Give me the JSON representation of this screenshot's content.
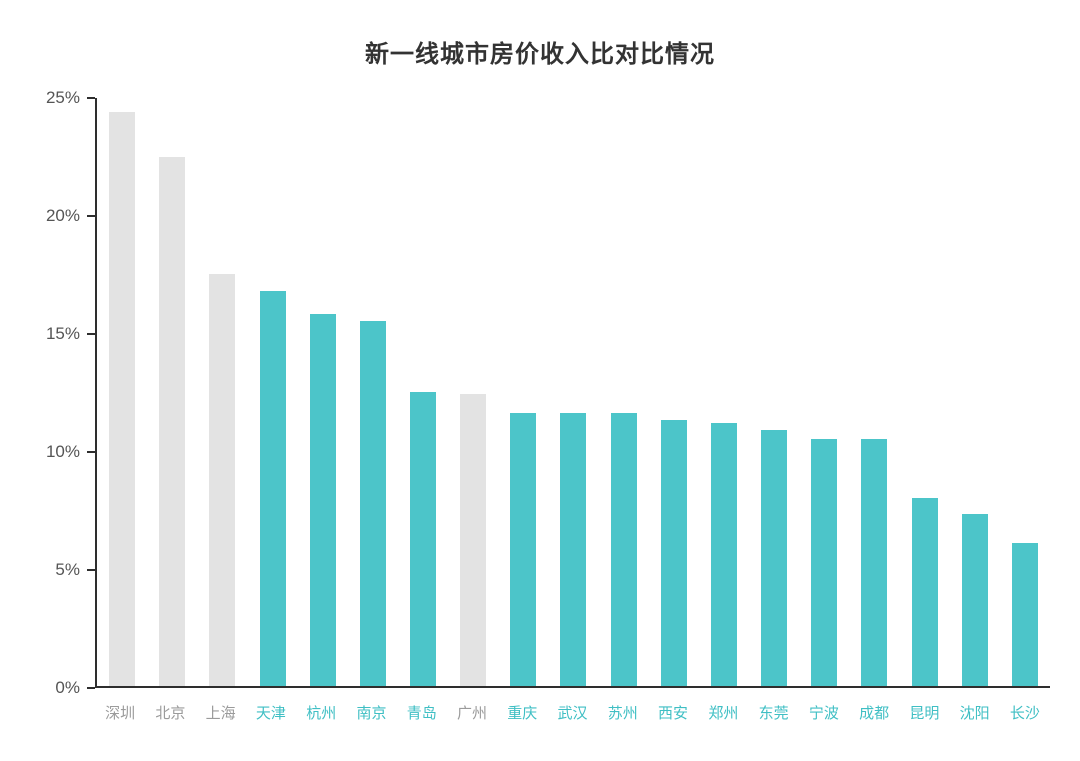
{
  "chart_data": {
    "type": "bar",
    "title": "新一线城市房价收入比对比情况",
    "xlabel": "",
    "ylabel": "",
    "categories": [
      "深圳",
      "北京",
      "上海",
      "天津",
      "杭州",
      "南京",
      "青岛",
      "广州",
      "重庆",
      "武汉",
      "苏州",
      "西安",
      "郑州",
      "东莞",
      "宁波",
      "成都",
      "昆明",
      "沈阳",
      "长沙"
    ],
    "values": [
      24.4,
      22.5,
      17.5,
      16.8,
      15.8,
      15.5,
      12.5,
      12.4,
      11.6,
      11.6,
      11.6,
      11.3,
      11.2,
      10.9,
      10.5,
      10.5,
      8.0,
      7.3,
      6.1
    ],
    "bar_color_keys": [
      "gray",
      "gray",
      "gray",
      "teal",
      "teal",
      "teal",
      "teal",
      "gray",
      "teal",
      "teal",
      "teal",
      "teal",
      "teal",
      "teal",
      "teal",
      "teal",
      "teal",
      "teal",
      "teal"
    ],
    "colors": {
      "gray": "#e3e3e3",
      "teal": "#4cc5c9"
    },
    "label_colors": {
      "gray": "#9b9b9b",
      "teal": "#3fbfc4"
    },
    "ylim": [
      0,
      25
    ],
    "yticks": [
      "0%",
      "5%",
      "10%",
      "15%",
      "20%",
      "25%"
    ],
    "ytick_values": [
      0,
      5,
      10,
      15,
      20,
      25
    ],
    "grid": false,
    "legend": false,
    "axis_color": "#2e2e2e"
  }
}
